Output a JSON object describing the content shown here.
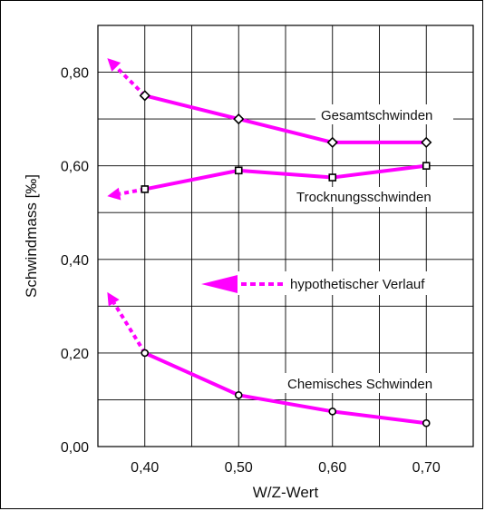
{
  "chart_data": {
    "type": "line",
    "xlabel": "W/Z-Wert",
    "ylabel": "Schwindmass [‰]",
    "x_ticks": [
      "0,40",
      "0,50",
      "0,60",
      "0,70"
    ],
    "y_ticks": [
      "0,00",
      "0,20",
      "0,40",
      "0,60",
      "0,80"
    ],
    "xlim": [
      0.35,
      0.75
    ],
    "ylim": [
      0.0,
      0.9
    ],
    "grid": true,
    "line_color": "#ff00ff",
    "series": [
      {
        "name": "Gesamtschwinden",
        "marker": "diamond",
        "x": [
          0.4,
          0.5,
          0.6,
          0.7
        ],
        "y": [
          0.75,
          0.7,
          0.65,
          0.65
        ],
        "hypothetical_to": [
          0.36,
          0.83
        ]
      },
      {
        "name": "Trocknungsschwinden",
        "marker": "square",
        "x": [
          0.4,
          0.5,
          0.6,
          0.7
        ],
        "y": [
          0.55,
          0.59,
          0.575,
          0.6
        ],
        "hypothetical_to": [
          0.36,
          0.535
        ]
      },
      {
        "name": "Chemisches Schwinden",
        "marker": "circle",
        "x": [
          0.4,
          0.5,
          0.6,
          0.7
        ],
        "y": [
          0.2,
          0.11,
          0.075,
          0.05
        ],
        "hypothetical_to": [
          0.36,
          0.33
        ]
      }
    ],
    "legend_note": "hypothetischer Verlauf"
  }
}
